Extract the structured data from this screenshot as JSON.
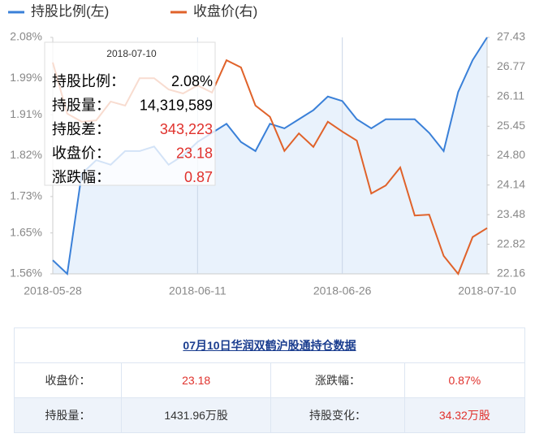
{
  "chart_data": {
    "type": "line",
    "categories": [
      "2018-05-28",
      null,
      null,
      null,
      null,
      null,
      null,
      null,
      null,
      null,
      "2018-06-11",
      null,
      null,
      null,
      null,
      null,
      null,
      null,
      null,
      null,
      "2018-06-26",
      null,
      null,
      null,
      null,
      null,
      null,
      null,
      null,
      null,
      "2018-07-10"
    ],
    "series": [
      {
        "name": "持股比例(左)",
        "color": "#3a80d8",
        "fill": "#e9f2fc",
        "axis": "y",
        "values": [
          1.59,
          1.56,
          1.78,
          1.81,
          1.8,
          1.83,
          1.83,
          1.84,
          1.8,
          1.82,
          1.85,
          1.87,
          1.89,
          1.85,
          1.83,
          1.89,
          1.88,
          1.9,
          1.92,
          1.95,
          1.94,
          1.9,
          1.88,
          1.9,
          1.9,
          1.9,
          1.87,
          1.83,
          1.96,
          2.03,
          2.08
        ]
      },
      {
        "name": "收盘价(右)",
        "color": "#e0622a",
        "axis": "y2",
        "values": [
          26.87,
          25.73,
          25.55,
          25.58,
          26.0,
          25.91,
          26.52,
          26.52,
          26.27,
          26.18,
          26.36,
          26.2,
          26.92,
          26.76,
          25.91,
          25.66,
          24.9,
          25.29,
          24.99,
          25.55,
          25.33,
          25.13,
          23.95,
          24.13,
          24.53,
          23.46,
          23.48,
          22.56,
          22.16,
          22.98,
          23.18
        ]
      }
    ],
    "ylim": [
      1.56,
      2.08
    ],
    "yticks": [
      {
        "value": 1.56,
        "label": "1.56%"
      },
      {
        "value": 1.65,
        "label": "1.65%"
      },
      {
        "value": 1.73,
        "label": "1.73%"
      },
      {
        "value": 1.82,
        "label": "1.82%"
      },
      {
        "value": 1.91,
        "label": "1.91%"
      },
      {
        "value": 1.99,
        "label": "1.99%"
      },
      {
        "value": 2.08,
        "label": "2.08%"
      }
    ],
    "y2lim": [
      22.16,
      27.43
    ],
    "y2ticks": [
      22.16,
      22.82,
      23.48,
      24.14,
      {
        "value": 24.8,
        "label": "24.80"
      },
      25.45,
      26.11,
      26.77,
      27.43
    ]
  },
  "tooltip": {
    "date": "2018-07-10",
    "rows": [
      {
        "label": "持股比例：",
        "value": "2.08%"
      },
      {
        "label": "持股量：",
        "value": "14,319,589"
      },
      {
        "label": "持股差：",
        "value": "343,223"
      },
      {
        "label": "收盘价：",
        "value": "23.18"
      },
      {
        "label": "涨跌幅：",
        "value": "0.87"
      }
    ]
  },
  "table": {
    "title": "07月10日华润双鹤沪股通持仓数据",
    "rows": [
      [
        "收盘价：",
        "23.18",
        "涨跌幅：",
        "0.87%"
      ],
      [
        "持股量：",
        "1431.96万股",
        "持股变化：",
        "34.32万股"
      ]
    ]
  }
}
